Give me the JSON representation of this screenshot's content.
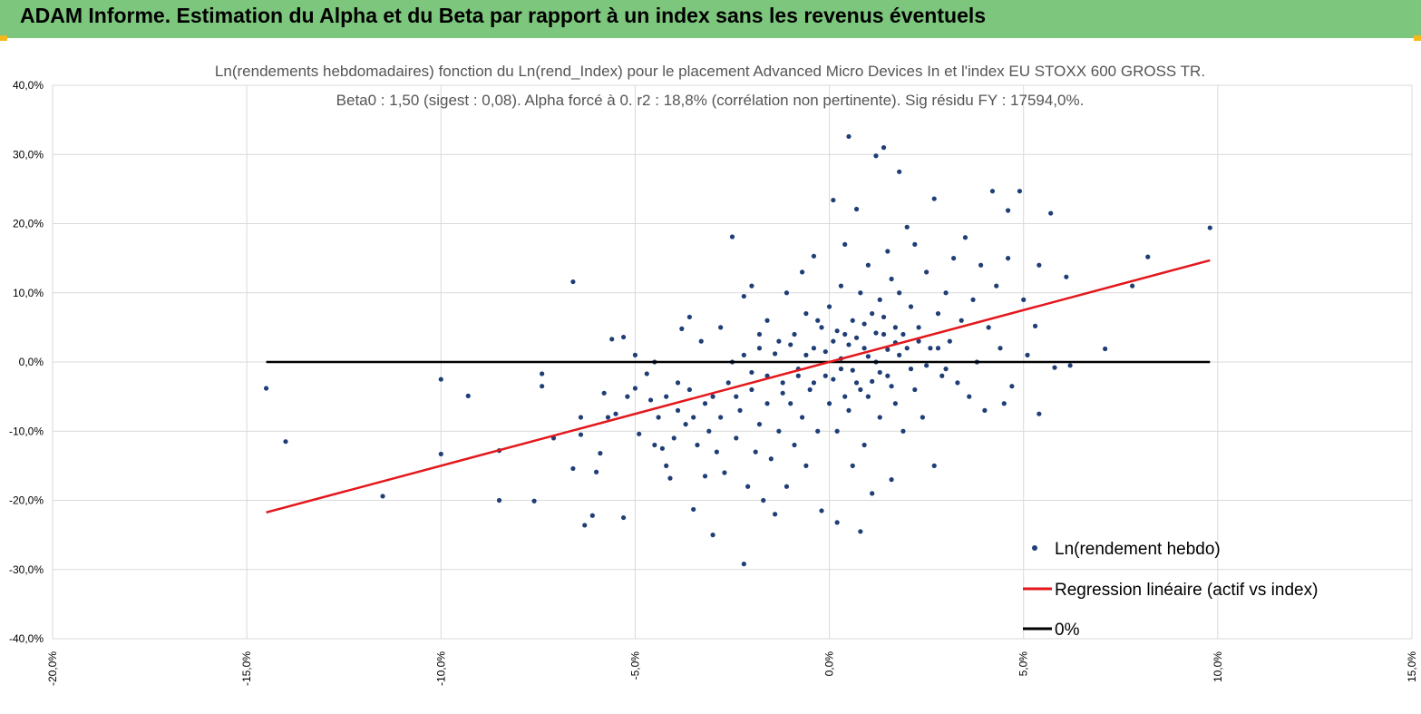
{
  "header": {
    "title": "ADAM Informe. Estimation du Alpha et du Beta par rapport à un index sans les revenus éventuels"
  },
  "colors": {
    "header_bg": "#7dc67d",
    "points": "#1f3e76",
    "regression": "#e3171b",
    "zero_line": "#000000",
    "grid": "#d9d9d9"
  },
  "chart_data": {
    "type": "scatter",
    "title": "Ln(rendements hebdomadaires) fonction du Ln(rend_Index) pour le placement Advanced Micro Devices In et l'index EU STOXX 600 GROSS TR.",
    "subtitle": "Beta0 : 1,50 (sigest : 0,08). Alpha forcé à 0. r2 : 18,8% (corrélation non pertinente). Sig résidu FY : 17594,0%.",
    "xlim": [
      -0.2,
      0.15
    ],
    "ylim": [
      -0.4,
      0.4
    ],
    "x_ticks": [
      -0.2,
      -0.15,
      -0.1,
      -0.05,
      0.0,
      0.05,
      0.1,
      0.15
    ],
    "y_ticks": [
      0.4,
      0.3,
      0.2,
      0.1,
      0.0,
      -0.1,
      -0.2,
      -0.3,
      -0.4
    ],
    "x_tick_labels": [
      "-20,0%",
      "-15,0%",
      "-10,0%",
      "-5,0%",
      "0,0%",
      "5,0%",
      "10,0%",
      "15,0%"
    ],
    "y_tick_labels": [
      "40,0%",
      "30,0%",
      "20,0%",
      "10,0%",
      "0,0%",
      "-10,0%",
      "-20,0%",
      "-30,0%",
      "-40,0%"
    ],
    "grid": "vertical and horizontal",
    "legend_position": "bottom-right",
    "series": [
      {
        "name": "Ln(rendement hebdo)",
        "type": "scatter",
        "points": [
          [
            -0.145,
            -0.038
          ],
          [
            -0.14,
            -0.115
          ],
          [
            -0.115,
            -0.194
          ],
          [
            -0.1,
            -0.025
          ],
          [
            -0.1,
            -0.133
          ],
          [
            -0.093,
            -0.049
          ],
          [
            -0.085,
            -0.128
          ],
          [
            -0.085,
            -0.2
          ],
          [
            -0.076,
            -0.201
          ],
          [
            -0.074,
            -0.017
          ],
          [
            -0.074,
            -0.035
          ],
          [
            -0.071,
            -0.11
          ],
          [
            -0.066,
            0.116
          ],
          [
            -0.066,
            -0.154
          ],
          [
            -0.064,
            -0.08
          ],
          [
            -0.064,
            -0.105
          ],
          [
            -0.063,
            -0.236
          ],
          [
            -0.061,
            -0.222
          ],
          [
            -0.06,
            -0.159
          ],
          [
            -0.059,
            -0.132
          ],
          [
            -0.058,
            -0.045
          ],
          [
            -0.057,
            -0.08
          ],
          [
            -0.056,
            0.033
          ],
          [
            -0.055,
            -0.075
          ],
          [
            -0.053,
            0.036
          ],
          [
            -0.053,
            -0.225
          ],
          [
            -0.052,
            -0.05
          ],
          [
            -0.05,
            0.01
          ],
          [
            -0.05,
            -0.038
          ],
          [
            -0.049,
            -0.104
          ],
          [
            -0.047,
            -0.017
          ],
          [
            -0.046,
            -0.055
          ],
          [
            -0.045,
            -0.12
          ],
          [
            -0.045,
            0.0
          ],
          [
            -0.044,
            -0.08
          ],
          [
            -0.043,
            -0.125
          ],
          [
            -0.042,
            -0.15
          ],
          [
            -0.042,
            -0.05
          ],
          [
            -0.041,
            -0.168
          ],
          [
            -0.04,
            -0.11
          ],
          [
            -0.039,
            -0.03
          ],
          [
            -0.039,
            -0.07
          ],
          [
            -0.038,
            0.048
          ],
          [
            -0.037,
            -0.09
          ],
          [
            -0.036,
            -0.04
          ],
          [
            -0.036,
            0.065
          ],
          [
            -0.035,
            -0.213
          ],
          [
            -0.035,
            -0.08
          ],
          [
            -0.034,
            -0.12
          ],
          [
            -0.033,
            0.03
          ],
          [
            -0.032,
            -0.06
          ],
          [
            -0.032,
            -0.165
          ],
          [
            -0.031,
            -0.1
          ],
          [
            -0.03,
            -0.25
          ],
          [
            -0.03,
            -0.05
          ],
          [
            -0.029,
            -0.13
          ],
          [
            -0.028,
            0.05
          ],
          [
            -0.028,
            -0.08
          ],
          [
            -0.027,
            -0.16
          ],
          [
            -0.026,
            -0.03
          ],
          [
            -0.025,
            0.181
          ],
          [
            -0.025,
            0.0
          ],
          [
            -0.024,
            -0.11
          ],
          [
            -0.023,
            -0.07
          ],
          [
            -0.022,
            -0.292
          ],
          [
            -0.022,
            0.095
          ],
          [
            -0.021,
            -0.18
          ],
          [
            -0.02,
            0.11
          ],
          [
            -0.02,
            -0.04
          ],
          [
            -0.019,
            -0.13
          ],
          [
            -0.018,
            0.02
          ],
          [
            -0.018,
            -0.09
          ],
          [
            -0.017,
            -0.2
          ],
          [
            -0.016,
            0.06
          ],
          [
            -0.016,
            -0.06
          ],
          [
            -0.015,
            -0.14
          ],
          [
            -0.014,
            -0.22
          ],
          [
            -0.013,
            0.03
          ],
          [
            -0.013,
            -0.1
          ],
          [
            -0.012,
            -0.03
          ],
          [
            -0.011,
            0.1
          ],
          [
            -0.011,
            -0.18
          ],
          [
            -0.01,
            -0.06
          ],
          [
            -0.009,
            0.04
          ],
          [
            -0.009,
            -0.12
          ],
          [
            -0.008,
            -0.02
          ],
          [
            -0.007,
            0.13
          ],
          [
            -0.007,
            -0.08
          ],
          [
            -0.006,
            0.07
          ],
          [
            -0.006,
            -0.15
          ],
          [
            -0.005,
            -0.04
          ],
          [
            -0.004,
            0.02
          ],
          [
            -0.004,
            0.153
          ],
          [
            -0.003,
            -0.1
          ],
          [
            -0.002,
            0.05
          ],
          [
            -0.002,
            -0.215
          ],
          [
            -0.001,
            -0.02
          ],
          [
            0.0,
            0.08
          ],
          [
            0.0,
            -0.06
          ],
          [
            0.001,
            0.234
          ],
          [
            0.001,
            0.03
          ],
          [
            0.002,
            -0.232
          ],
          [
            0.002,
            -0.1
          ],
          [
            0.003,
            0.11
          ],
          [
            0.003,
            -0.01
          ],
          [
            0.004,
            0.17
          ],
          [
            0.004,
            0.04
          ],
          [
            0.005,
            -0.07
          ],
          [
            0.005,
            0.326
          ],
          [
            0.006,
            -0.15
          ],
          [
            0.006,
            0.06
          ],
          [
            0.007,
            0.221
          ],
          [
            0.007,
            -0.03
          ],
          [
            0.008,
            -0.245
          ],
          [
            0.008,
            0.1
          ],
          [
            0.009,
            0.02
          ],
          [
            0.009,
            -0.12
          ],
          [
            0.01,
            0.14
          ],
          [
            0.01,
            -0.05
          ],
          [
            0.011,
            0.07
          ],
          [
            0.011,
            -0.19
          ],
          [
            0.012,
            0.298
          ],
          [
            0.012,
            0.0
          ],
          [
            0.013,
            0.09
          ],
          [
            0.013,
            -0.08
          ],
          [
            0.014,
            0.31
          ],
          [
            0.014,
            0.04
          ],
          [
            0.015,
            0.16
          ],
          [
            0.015,
            -0.02
          ],
          [
            0.016,
            0.12
          ],
          [
            0.016,
            -0.17
          ],
          [
            0.017,
            0.05
          ],
          [
            0.017,
            -0.06
          ],
          [
            0.018,
            0.275
          ],
          [
            0.018,
            0.1
          ],
          [
            0.019,
            -0.1
          ],
          [
            0.02,
            0.195
          ],
          [
            0.02,
            0.02
          ],
          [
            0.021,
            0.08
          ],
          [
            0.022,
            -0.04
          ],
          [
            0.022,
            0.17
          ],
          [
            0.023,
            0.05
          ],
          [
            0.024,
            -0.08
          ],
          [
            0.025,
            0.13
          ],
          [
            0.026,
            0.02
          ],
          [
            0.027,
            0.236
          ],
          [
            0.027,
            -0.15
          ],
          [
            0.028,
            0.07
          ],
          [
            0.029,
            -0.02
          ],
          [
            0.03,
            0.1
          ],
          [
            0.031,
            0.03
          ],
          [
            0.032,
            0.15
          ],
          [
            0.033,
            -0.03
          ],
          [
            0.034,
            0.06
          ],
          [
            0.035,
            0.18
          ],
          [
            0.036,
            -0.05
          ],
          [
            0.037,
            0.09
          ],
          [
            0.038,
            0.0
          ],
          [
            0.039,
            0.14
          ],
          [
            0.04,
            -0.07
          ],
          [
            0.041,
            0.05
          ],
          [
            0.042,
            0.247
          ],
          [
            0.043,
            0.11
          ],
          [
            0.044,
            0.02
          ],
          [
            0.045,
            -0.06
          ],
          [
            0.046,
            0.15
          ],
          [
            0.046,
            0.219
          ],
          [
            0.047,
            -0.035
          ],
          [
            0.049,
            0.247
          ],
          [
            0.05,
            0.09
          ],
          [
            0.051,
            0.01
          ],
          [
            0.053,
            0.052
          ],
          [
            0.054,
            -0.075
          ],
          [
            0.054,
            0.14
          ],
          [
            0.057,
            0.215
          ],
          [
            0.058,
            -0.008
          ],
          [
            0.061,
            0.123
          ],
          [
            0.062,
            -0.005
          ],
          [
            0.071,
            0.019
          ],
          [
            0.078,
            0.11
          ],
          [
            0.082,
            0.152
          ],
          [
            0.098,
            0.194
          ],
          [
            -0.006,
            0.01
          ],
          [
            -0.004,
            -0.03
          ],
          [
            -0.003,
            0.06
          ],
          [
            -0.001,
            0.015
          ],
          [
            0.001,
            -0.025
          ],
          [
            0.002,
            0.045
          ],
          [
            0.003,
            0.005
          ],
          [
            0.004,
            -0.05
          ],
          [
            0.005,
            0.025
          ],
          [
            0.006,
            -0.012
          ],
          [
            0.007,
            0.035
          ],
          [
            0.008,
            -0.04
          ],
          [
            0.009,
            0.055
          ],
          [
            0.01,
            0.008
          ],
          [
            0.011,
            -0.028
          ],
          [
            0.012,
            0.042
          ],
          [
            0.013,
            -0.015
          ],
          [
            0.014,
            0.065
          ],
          [
            0.015,
            0.018
          ],
          [
            0.016,
            -0.035
          ],
          [
            0.017,
            0.028
          ],
          [
            -0.008,
            -0.01
          ],
          [
            -0.01,
            0.025
          ],
          [
            -0.012,
            -0.045
          ],
          [
            -0.014,
            0.012
          ],
          [
            -0.016,
            -0.02
          ],
          [
            -0.018,
            0.04
          ],
          [
            -0.02,
            -0.015
          ],
          [
            -0.022,
            0.01
          ],
          [
            -0.024,
            -0.05
          ],
          [
            0.018,
            0.01
          ],
          [
            0.019,
            0.04
          ],
          [
            0.021,
            -0.01
          ],
          [
            0.023,
            0.03
          ],
          [
            0.025,
            -0.005
          ],
          [
            0.028,
            0.02
          ],
          [
            0.03,
            -0.01
          ]
        ]
      },
      {
        "name": "Regression linéaire (actif vs index)",
        "type": "line",
        "x": [
          -0.145,
          0.098
        ],
        "y": [
          -0.2175,
          0.147
        ]
      },
      {
        "name": "0%",
        "type": "line",
        "x": [
          -0.145,
          0.098
        ],
        "y": [
          0,
          0
        ]
      }
    ]
  }
}
